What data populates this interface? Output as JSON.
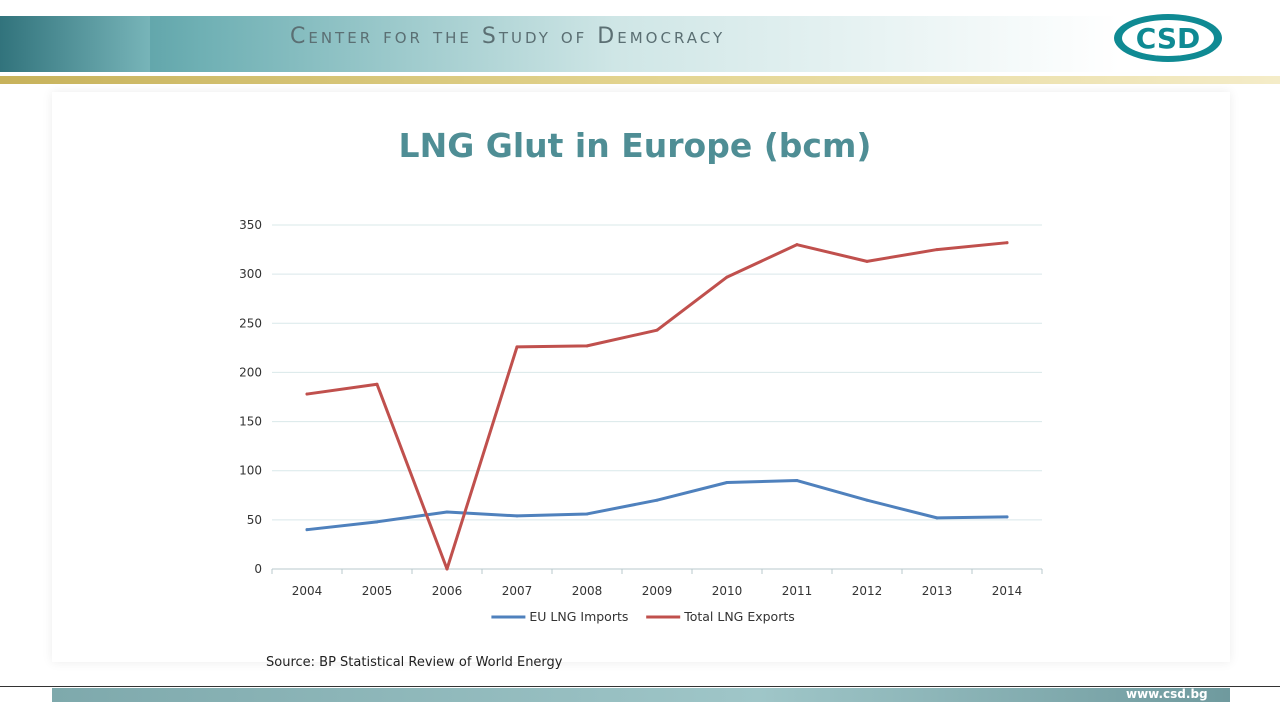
{
  "header": {
    "title": "Center for the Study of Democracy",
    "logo_text": "CSD"
  },
  "footer": {
    "url": "www.csd.bg"
  },
  "source_note": "Source: BP Statistical Review of World Energy",
  "colors": {
    "title": "#4f8e95",
    "eu_imports": "#4f81bd",
    "total_exports": "#c0504d",
    "grid": "#d9e8ea"
  },
  "chart_data": {
    "type": "line",
    "title": "LNG Glut in Europe (bcm)",
    "xlabel": "",
    "ylabel": "",
    "ylim": [
      0,
      350
    ],
    "yticks": [
      0,
      50,
      100,
      150,
      200,
      250,
      300,
      350
    ],
    "categories": [
      "2004",
      "2005",
      "2006",
      "2007",
      "2008",
      "2009",
      "2010",
      "2011",
      "2012",
      "2013",
      "2014"
    ],
    "series": [
      {
        "name": "EU LNG Imports",
        "color": "#4f81bd",
        "values": [
          40,
          48,
          58,
          54,
          56,
          70,
          88,
          90,
          70,
          52,
          53
        ]
      },
      {
        "name": "Total LNG Exports",
        "color": "#c0504d",
        "values": [
          178,
          188,
          0,
          226,
          227,
          243,
          297,
          330,
          313,
          325,
          332
        ]
      }
    ],
    "grid": true,
    "legend": "bottom"
  }
}
